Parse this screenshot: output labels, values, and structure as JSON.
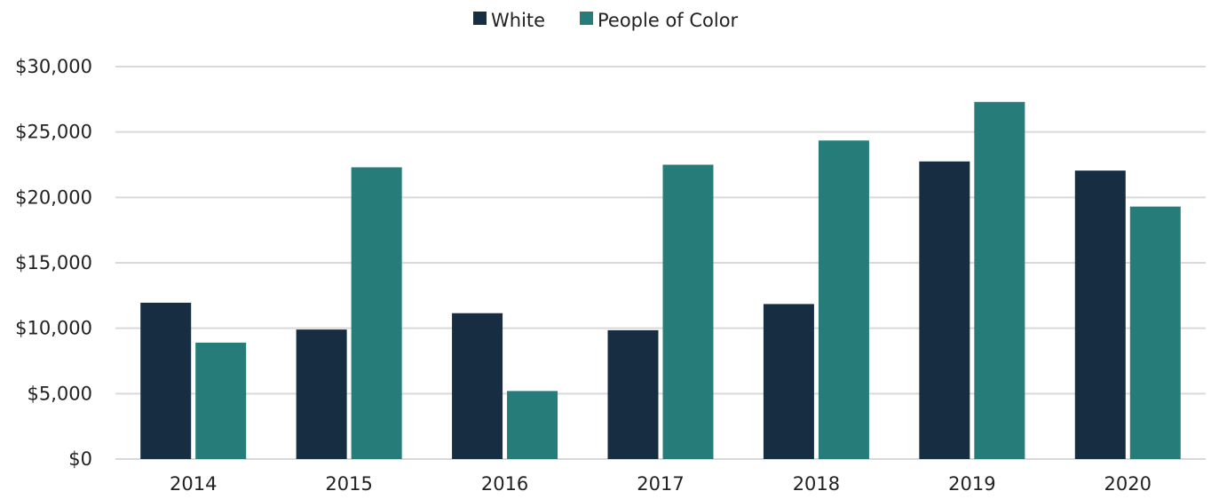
{
  "chart_data": {
    "type": "bar",
    "title": "",
    "xlabel": "",
    "ylabel": "",
    "categories": [
      "2014",
      "2015",
      "2016",
      "2017",
      "2018",
      "2019",
      "2020"
    ],
    "series": [
      {
        "name": "White",
        "color": "#172d42",
        "values": [
          11950,
          9900,
          11150,
          9850,
          11850,
          22750,
          22050
        ]
      },
      {
        "name": "People of Color",
        "color": "#267c78",
        "values": [
          8900,
          22300,
          5200,
          22500,
          24350,
          27300,
          19300
        ]
      }
    ],
    "ylim": [
      0,
      30000
    ],
    "yticks": [
      0,
      5000,
      10000,
      15000,
      20000,
      25000,
      30000
    ],
    "ytick_labels": [
      "$0",
      "$5,000",
      "$10,000",
      "$15,000",
      "$20,000",
      "$25,000",
      "$30,000"
    ],
    "grid": true,
    "legend_position": "top-center"
  }
}
